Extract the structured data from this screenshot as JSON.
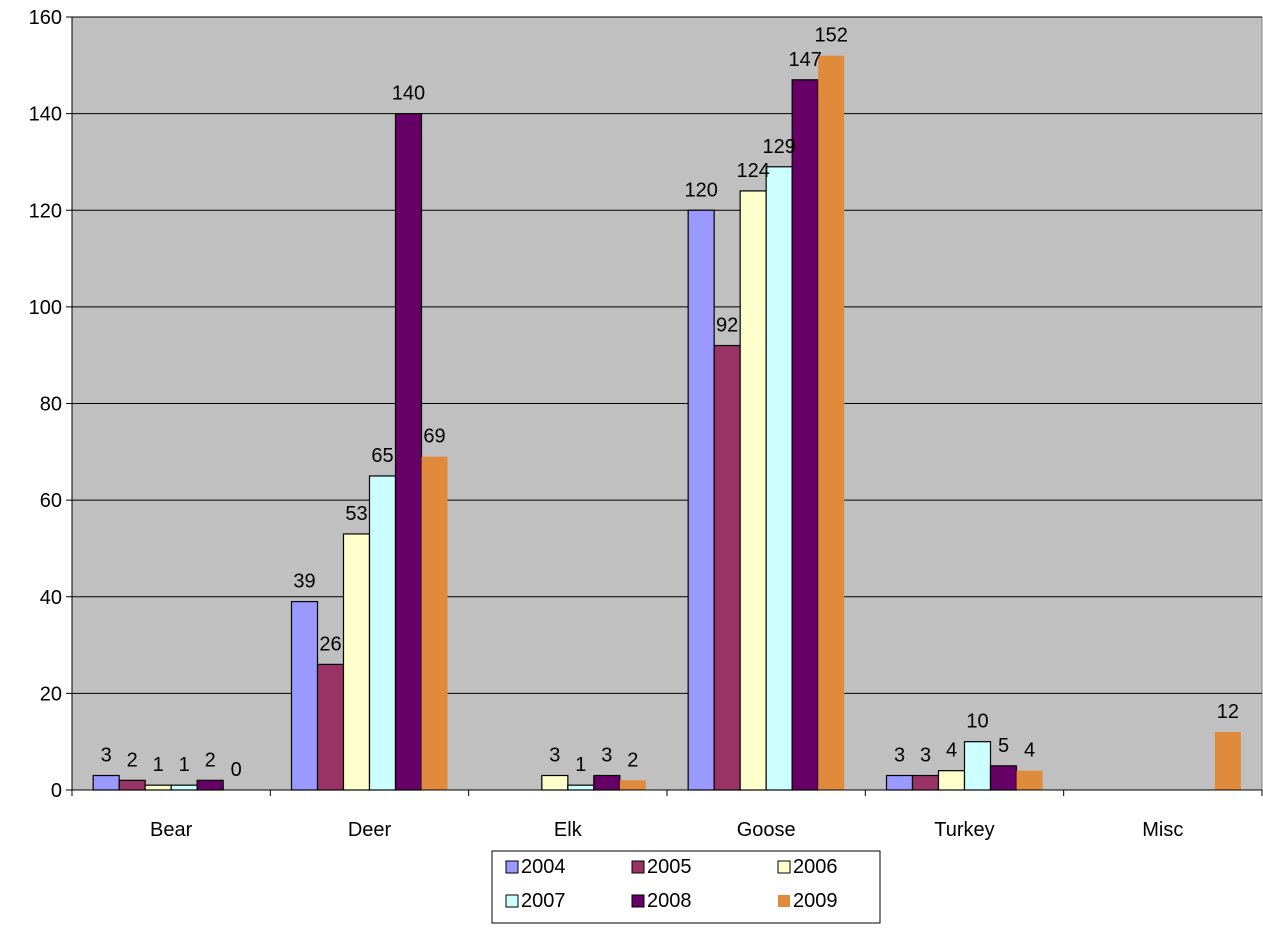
{
  "chart_data": {
    "type": "bar",
    "title": "",
    "xlabel": "",
    "ylabel": "",
    "ylim": [
      0,
      160
    ],
    "yticks": [
      0,
      20,
      40,
      60,
      80,
      100,
      120,
      140,
      160
    ],
    "grid": true,
    "legend_position": "bottom",
    "plot_background": "#c0c0c0",
    "categories": [
      "Bear",
      "Deer",
      "Elk",
      "Goose",
      "Turkey",
      "Misc"
    ],
    "series": [
      {
        "name": "2004",
        "color": "#9999ff",
        "values": [
          3,
          39,
          null,
          120,
          3,
          null
        ],
        "labels": [
          "3",
          "39",
          null,
          "120",
          "3",
          null
        ]
      },
      {
        "name": "2005",
        "color": "#993366",
        "values": [
          2,
          26,
          null,
          92,
          3,
          null
        ],
        "labels": [
          "2",
          "26",
          null,
          "92",
          "3",
          null
        ]
      },
      {
        "name": "2006",
        "color": "#ffffcc",
        "values": [
          1,
          53,
          3,
          124,
          4,
          null
        ],
        "labels": [
          "1",
          "53",
          "3",
          "124",
          "4",
          null
        ]
      },
      {
        "name": "2007",
        "color": "#ccffff",
        "values": [
          1,
          65,
          1,
          129,
          10,
          null
        ],
        "labels": [
          "1",
          "65",
          "1",
          "129",
          "10",
          null
        ]
      },
      {
        "name": "2008",
        "color": "#660066",
        "values": [
          2,
          140,
          3,
          147,
          5,
          null
        ],
        "labels": [
          "2",
          "140",
          "3",
          "147",
          "5",
          null
        ]
      },
      {
        "name": "2009",
        "color": "#e08a3c",
        "values": [
          0,
          69,
          2,
          152,
          4,
          12
        ],
        "labels": [
          "0",
          "69",
          "2",
          "152",
          "4",
          "12"
        ]
      }
    ]
  }
}
